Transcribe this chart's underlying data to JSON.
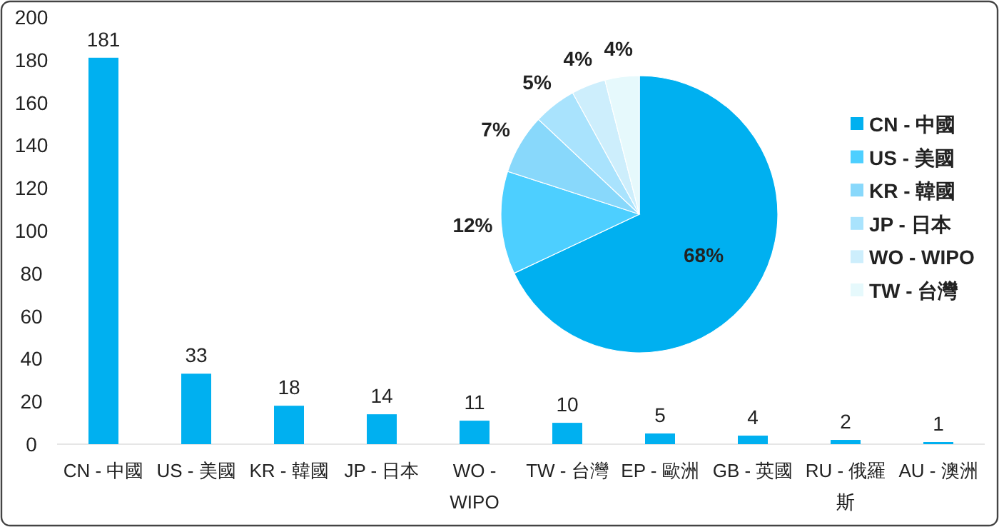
{
  "chart_data": [
    {
      "type": "bar",
      "categories": [
        "CN - 中國",
        "US - 美國",
        "KR - 韓國",
        "JP - 日本",
        "WO - WIPO",
        "TW - 台灣",
        "EP - 歐洲",
        "GB - 英國",
        "RU - 俄羅斯",
        "AU - 澳洲"
      ],
      "values": [
        181,
        33,
        18,
        14,
        11,
        10,
        5,
        4,
        2,
        1
      ],
      "color": "#00b0f0",
      "ylim": [
        0,
        200
      ],
      "yticks": [
        0,
        20,
        40,
        60,
        80,
        100,
        120,
        140,
        160,
        180,
        200
      ],
      "data_labels": true
    },
    {
      "type": "pie",
      "categories": [
        "CN - 中國",
        "US - 美國",
        "KR - 韓國",
        "JP - 日本",
        "WO - WIPO",
        "TW - 台灣"
      ],
      "values": [
        68,
        12,
        7,
        5,
        4,
        4
      ],
      "colors": [
        "#00b0f0",
        "#4dcfff",
        "#88d8fb",
        "#a9e3fd",
        "#cdeefc",
        "#e6f9fc"
      ],
      "value_labels": [
        "68%",
        "12%",
        "7%",
        "5%",
        "4%",
        "4%"
      ],
      "legend": "right"
    }
  ]
}
